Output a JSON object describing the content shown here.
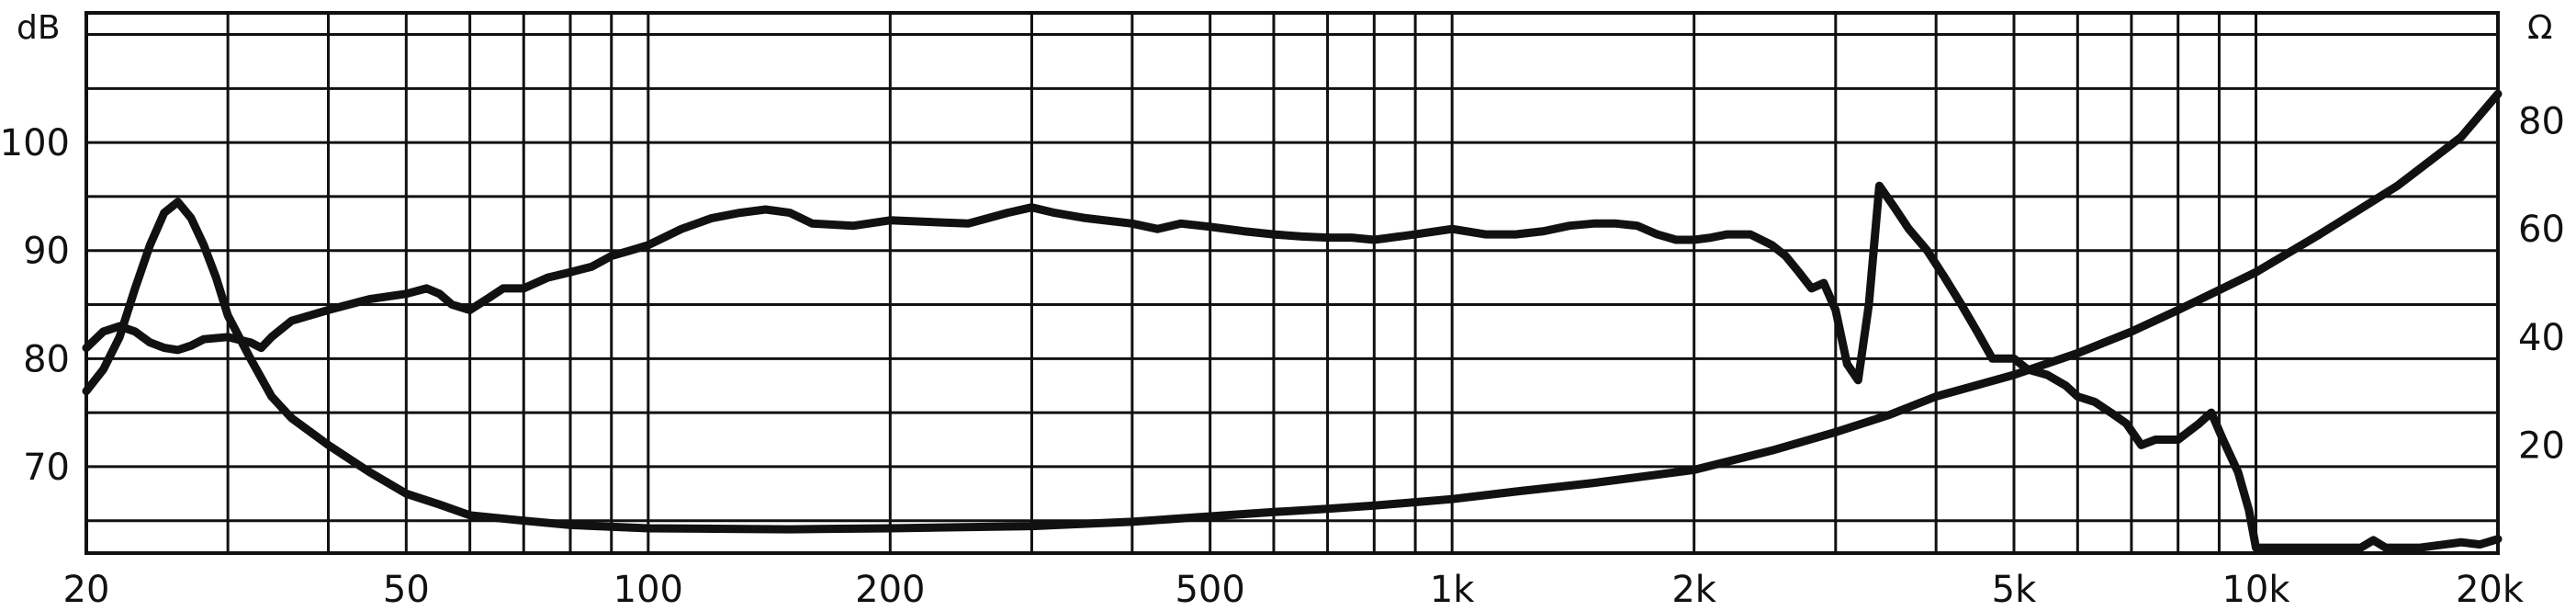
{
  "chart_data": {
    "type": "line",
    "x_scale": "log",
    "grid": true,
    "xlim": [
      20,
      20000
    ],
    "ylim_left": [
      62,
      112
    ],
    "ylim_right": [
      0,
      100
    ],
    "units": {
      "left": "dB",
      "right": "Ω"
    },
    "x_ticks": [
      {
        "value": 20,
        "label": "20"
      },
      {
        "value": 50,
        "label": "50"
      },
      {
        "value": 100,
        "label": "100"
      },
      {
        "value": 200,
        "label": "200"
      },
      {
        "value": 500,
        "label": "500"
      },
      {
        "value": 1000,
        "label": "1k"
      },
      {
        "value": 2000,
        "label": "2k"
      },
      {
        "value": 5000,
        "label": "5k"
      },
      {
        "value": 10000,
        "label": "10k"
      },
      {
        "value": 20000,
        "label": "20k"
      }
    ],
    "y_left_ticks": [
      {
        "value": 70,
        "label": "70"
      },
      {
        "value": 80,
        "label": "80"
      },
      {
        "value": 90,
        "label": "90"
      },
      {
        "value": 100,
        "label": "100"
      }
    ],
    "y_right_ticks": [
      {
        "value": 20,
        "label": "20"
      },
      {
        "value": 40,
        "label": "40"
      },
      {
        "value": 60,
        "label": "60"
      },
      {
        "value": 80,
        "label": "80"
      }
    ],
    "series": [
      {
        "axis": "left",
        "color": "#111111",
        "points": [
          [
            20,
            77
          ],
          [
            21,
            79
          ],
          [
            22,
            82
          ],
          [
            23,
            86.5
          ],
          [
            24,
            90.5
          ],
          [
            25,
            93.5
          ],
          [
            26,
            94.5
          ],
          [
            27,
            93
          ],
          [
            28,
            90.5
          ],
          [
            29,
            87.5
          ],
          [
            30,
            84
          ],
          [
            32,
            80
          ],
          [
            34,
            76.5
          ],
          [
            36,
            74.5
          ],
          [
            40,
            72
          ],
          [
            45,
            69.5
          ],
          [
            50,
            67.5
          ],
          [
            55,
            66.5
          ],
          [
            60,
            65.5
          ],
          [
            70,
            65
          ],
          [
            80,
            64.6
          ],
          [
            100,
            64.3
          ],
          [
            150,
            64.2
          ],
          [
            200,
            64.3
          ],
          [
            300,
            64.5
          ],
          [
            400,
            64.9
          ],
          [
            500,
            65.4
          ],
          [
            600,
            65.8
          ],
          [
            700,
            66.1
          ],
          [
            800,
            66.4
          ],
          [
            1000,
            67
          ],
          [
            1200,
            67.7
          ],
          [
            1500,
            68.5
          ],
          [
            2000,
            69.7
          ],
          [
            2500,
            71.5
          ],
          [
            3000,
            73.2
          ],
          [
            3500,
            74.8
          ],
          [
            4000,
            76.5
          ],
          [
            5000,
            78.5
          ],
          [
            6000,
            80.5
          ],
          [
            7000,
            82.5
          ],
          [
            8000,
            84.5
          ],
          [
            10000,
            88
          ],
          [
            12000,
            91.5
          ],
          [
            15000,
            96
          ],
          [
            18000,
            100.5
          ],
          [
            20000,
            104.5
          ]
        ]
      },
      {
        "axis": "left",
        "color": "#111111",
        "points": [
          [
            20,
            81
          ],
          [
            21,
            82.5
          ],
          [
            22,
            83
          ],
          [
            23,
            82.5
          ],
          [
            24,
            81.5
          ],
          [
            25,
            81
          ],
          [
            26,
            80.8
          ],
          [
            27,
            81.2
          ],
          [
            28,
            81.8
          ],
          [
            30,
            82
          ],
          [
            32,
            81.5
          ],
          [
            33,
            81
          ],
          [
            34,
            82
          ],
          [
            36,
            83.5
          ],
          [
            40,
            84.5
          ],
          [
            45,
            85.5
          ],
          [
            50,
            86
          ],
          [
            53,
            86.5
          ],
          [
            55,
            86
          ],
          [
            57,
            85
          ],
          [
            60,
            84.5
          ],
          [
            63,
            85.5
          ],
          [
            66,
            86.5
          ],
          [
            70,
            86.5
          ],
          [
            75,
            87.5
          ],
          [
            80,
            88
          ],
          [
            85,
            88.5
          ],
          [
            90,
            89.5
          ],
          [
            95,
            90
          ],
          [
            100,
            90.5
          ],
          [
            110,
            92
          ],
          [
            120,
            93
          ],
          [
            130,
            93.5
          ],
          [
            140,
            93.8
          ],
          [
            150,
            93.5
          ],
          [
            160,
            92.5
          ],
          [
            180,
            92.3
          ],
          [
            200,
            92.8
          ],
          [
            250,
            92.5
          ],
          [
            280,
            93.5
          ],
          [
            300,
            94
          ],
          [
            320,
            93.5
          ],
          [
            350,
            93
          ],
          [
            400,
            92.5
          ],
          [
            430,
            92
          ],
          [
            460,
            92.5
          ],
          [
            500,
            92.2
          ],
          [
            550,
            91.8
          ],
          [
            600,
            91.5
          ],
          [
            650,
            91.3
          ],
          [
            700,
            91.2
          ],
          [
            750,
            91.2
          ],
          [
            800,
            91
          ],
          [
            900,
            91.5
          ],
          [
            1000,
            92
          ],
          [
            1100,
            91.5
          ],
          [
            1200,
            91.5
          ],
          [
            1300,
            91.8
          ],
          [
            1400,
            92.3
          ],
          [
            1500,
            92.5
          ],
          [
            1600,
            92.5
          ],
          [
            1700,
            92.3
          ],
          [
            1800,
            91.5
          ],
          [
            1900,
            91
          ],
          [
            2000,
            91
          ],
          [
            2100,
            91.2
          ],
          [
            2200,
            91.5
          ],
          [
            2350,
            91.5
          ],
          [
            2500,
            90.5
          ],
          [
            2600,
            89.5
          ],
          [
            2700,
            88
          ],
          [
            2800,
            86.5
          ],
          [
            2900,
            87
          ],
          [
            3000,
            84.5
          ],
          [
            3100,
            79.5
          ],
          [
            3200,
            78
          ],
          [
            3300,
            85
          ],
          [
            3400,
            96
          ],
          [
            3550,
            94
          ],
          [
            3700,
            92
          ],
          [
            3900,
            90
          ],
          [
            4100,
            87.5
          ],
          [
            4300,
            85
          ],
          [
            4500,
            82.5
          ],
          [
            4700,
            80
          ],
          [
            5000,
            80
          ],
          [
            5200,
            79
          ],
          [
            5500,
            78.5
          ],
          [
            5800,
            77.5
          ],
          [
            6000,
            76.5
          ],
          [
            6300,
            76
          ],
          [
            6600,
            75
          ],
          [
            6900,
            74
          ],
          [
            7200,
            72
          ],
          [
            7500,
            72.5
          ],
          [
            8000,
            72.5
          ],
          [
            8500,
            74
          ],
          [
            8800,
            75
          ],
          [
            9100,
            72.5
          ],
          [
            9500,
            69.5
          ],
          [
            9800,
            66
          ],
          [
            10000,
            62.5
          ],
          [
            11000,
            62.5
          ],
          [
            13500,
            62.5
          ],
          [
            14000,
            63.2
          ],
          [
            14500,
            62.5
          ],
          [
            16000,
            62.5
          ],
          [
            18000,
            63
          ],
          [
            19000,
            62.8
          ],
          [
            20000,
            63.3
          ]
        ]
      }
    ]
  }
}
